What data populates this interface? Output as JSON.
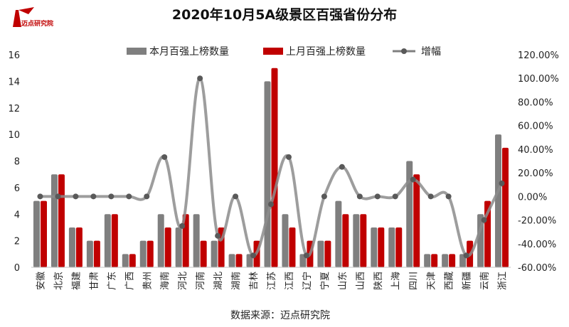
{
  "logo": {
    "text": "迈点研究院"
  },
  "chart_data": {
    "type": "bar",
    "title": "2020年10月5A级景区百强省份分布",
    "source": "数据来源：迈点研究院",
    "categories": [
      "安徽",
      "北京",
      "福建",
      "甘肃",
      "广东",
      "广西",
      "贵州",
      "海南",
      "河北",
      "河南",
      "湖北",
      "湖南",
      "吉林",
      "江苏",
      "江西",
      "辽宁",
      "宁夏",
      "山东",
      "山西",
      "陕西",
      "上海",
      "四川",
      "天津",
      "西藏",
      "新疆",
      "云南",
      "浙江"
    ],
    "series": [
      {
        "name": "本月百强上榜数量",
        "kind": "bar",
        "axis": "left",
        "color": "#7f7f7f",
        "values": [
          5,
          7,
          3,
          2,
          4,
          1,
          2,
          4,
          3,
          4,
          2,
          1,
          1,
          14,
          4,
          1,
          2,
          5,
          4,
          3,
          3,
          8,
          1,
          1,
          1,
          4,
          10
        ]
      },
      {
        "name": "上月百强上榜数量",
        "kind": "bar",
        "axis": "left",
        "color": "#c00000",
        "values": [
          5,
          7,
          3,
          2,
          4,
          1,
          2,
          3,
          4,
          2,
          3,
          1,
          2,
          15,
          3,
          2,
          2,
          4,
          4,
          3,
          3,
          7,
          1,
          1,
          2,
          5,
          9
        ]
      },
      {
        "name": "增幅",
        "kind": "line",
        "axis": "right",
        "color": "#7f7f7f",
        "values": [
          0,
          0,
          0,
          0,
          0,
          0,
          0,
          33.33,
          -25,
          100,
          -33.33,
          0,
          -50,
          -6.67,
          33.33,
          -50,
          0,
          25,
          0,
          0,
          0,
          14.29,
          0,
          0,
          -50,
          -20,
          11.11
        ]
      }
    ],
    "yleft": {
      "min": 0,
      "max": 16,
      "ticks": [
        "0",
        "2",
        "4",
        "6",
        "8",
        "10",
        "12",
        "14",
        "16"
      ]
    },
    "yright": {
      "min": -60,
      "max": 120,
      "ticks": [
        "-60.00%",
        "-40.00%",
        "-20.00%",
        "0.00%",
        "20.00%",
        "40.00%",
        "60.00%",
        "80.00%",
        "100.00%",
        "120.00%"
      ]
    },
    "legend": "top",
    "grid": false
  }
}
